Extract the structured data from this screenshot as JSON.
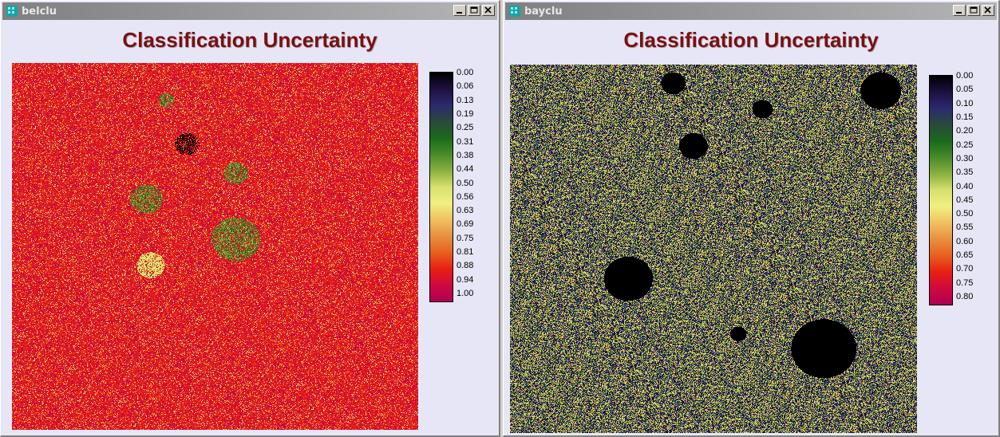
{
  "windows": [
    {
      "id": "belclu",
      "title": "belclu",
      "panel_title": "Classification Uncertainty",
      "legend": {
        "labels": [
          "0.00",
          "0.06",
          "0.13",
          "0.19",
          "0.25",
          "0.31",
          "0.38",
          "0.44",
          "0.50",
          "0.56",
          "0.63",
          "0.69",
          "0.75",
          "0.81",
          "0.88",
          "0.94",
          "1.00"
        ],
        "range": [
          0.0,
          1.0
        ]
      }
    },
    {
      "id": "bayclu",
      "title": "bayclu",
      "panel_title": "Classification Uncertainty",
      "legend": {
        "labels": [
          "0.00",
          "0.05",
          "0.10",
          "0.15",
          "0.20",
          "0.25",
          "0.30",
          "0.35",
          "0.40",
          "0.45",
          "0.50",
          "0.55",
          "0.60",
          "0.65",
          "0.70",
          "0.75",
          "0.80"
        ],
        "range": [
          0.0,
          0.8
        ]
      }
    }
  ],
  "colormap": [
    "#000000",
    "#1e1040",
    "#2b2a6e",
    "#2a4a3a",
    "#1a6a1a",
    "#4a8a2a",
    "#8ab040",
    "#d8e070",
    "#f0f080",
    "#f0c060",
    "#e89040",
    "#e86020",
    "#e82010",
    "#d00840",
    "#b00050"
  ],
  "window_controls": {
    "minimize_icon": "minimize-icon",
    "maximize_icon": "maximize-icon",
    "close_icon": "close-icon"
  }
}
